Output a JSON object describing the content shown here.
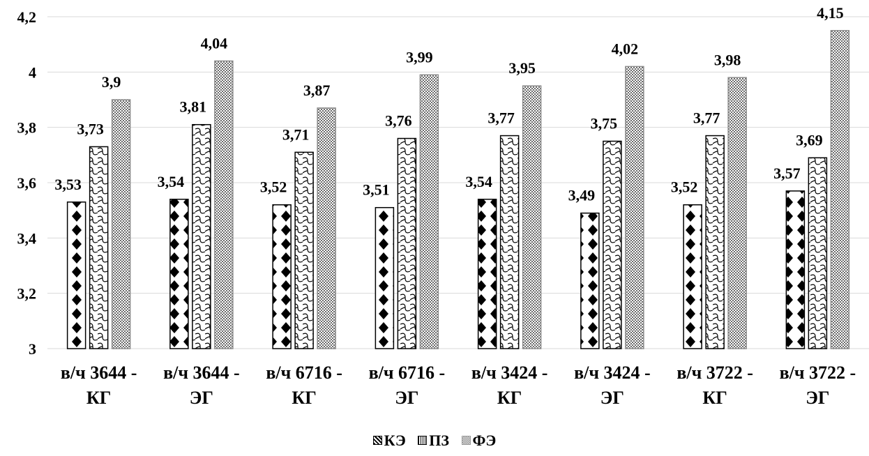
{
  "chart_data": {
    "type": "bar",
    "title": "",
    "xlabel": "",
    "ylabel": "",
    "ylim": [
      3,
      4.2
    ],
    "yticks": [
      3,
      3.2,
      3.4,
      3.6,
      3.8,
      4,
      4.2
    ],
    "ytick_labels": [
      "3",
      "3,2",
      "3,4",
      "3,6",
      "3,8",
      "4",
      "4,2"
    ],
    "grid": true,
    "legend_position": "bottom",
    "categories": [
      [
        "в/ч 3644 -",
        "КГ"
      ],
      [
        "в/ч 3644 -",
        "ЭГ"
      ],
      [
        "в/ч 6716 -",
        "КГ"
      ],
      [
        "в/ч 6716 -",
        "ЭГ"
      ],
      [
        "в/ч 3424 -",
        "КГ"
      ],
      [
        "в/ч 3424 -",
        "ЭГ"
      ],
      [
        "в/ч 3722 -",
        "КГ"
      ],
      [
        "в/ч 3722 -",
        "ЭГ"
      ]
    ],
    "series": [
      {
        "name": "КЭ",
        "pattern": "diamonds",
        "values": [
          3.53,
          3.54,
          3.52,
          3.51,
          3.54,
          3.49,
          3.52,
          3.57
        ],
        "labels": [
          "3,53",
          "3,54",
          "3,52",
          "3,51",
          "3,54",
          "3,49",
          "3,52",
          "3,57"
        ]
      },
      {
        "name": "ПЗ",
        "pattern": "waves",
        "values": [
          3.73,
          3.81,
          3.71,
          3.76,
          3.77,
          3.75,
          3.77,
          3.69
        ],
        "labels": [
          "3,73",
          "3,81",
          "3,71",
          "3,76",
          "3,77",
          "3,75",
          "3,77",
          "3,69"
        ]
      },
      {
        "name": "ФЭ",
        "pattern": "checker",
        "values": [
          3.9,
          4.04,
          3.87,
          3.99,
          3.95,
          4.02,
          3.98,
          4.15
        ],
        "labels": [
          "3,9",
          "4,04",
          "3,87",
          "3,99",
          "3,95",
          "4,02",
          "3,98",
          "4,15"
        ]
      }
    ]
  }
}
